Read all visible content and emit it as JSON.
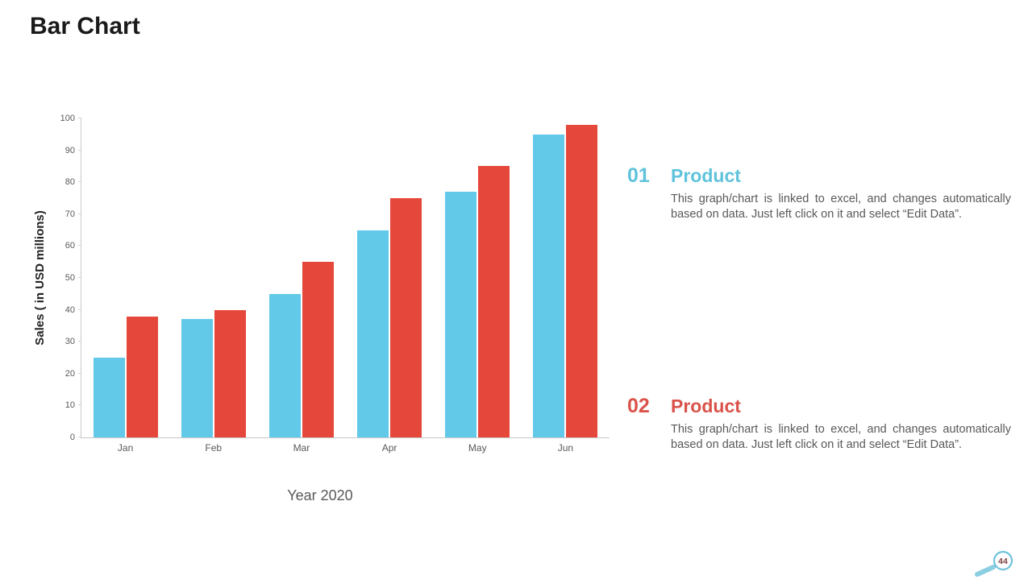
{
  "slide": {
    "title": "Bar Chart",
    "page_number": "44"
  },
  "chart_data": {
    "type": "bar",
    "title": "",
    "categories": [
      "Jan",
      "Feb",
      "Mar",
      "Apr",
      "May",
      "Jun"
    ],
    "series": [
      {
        "name": "Product 01",
        "color": "#62c9e8",
        "values": [
          25,
          37,
          45,
          65,
          77,
          95
        ]
      },
      {
        "name": "Product 02",
        "color": "#e5483b",
        "values": [
          38,
          40,
          55,
          75,
          85,
          98
        ]
      }
    ],
    "xlabel": "Year 2020",
    "ylabel": "Sales ( in USD millions)",
    "ylim": [
      0,
      100
    ],
    "ytick_step": 10,
    "grid": false,
    "legend": "none"
  },
  "panel": {
    "items": [
      {
        "number": "01",
        "heading": "Product",
        "color": "#5fc3db",
        "body": "This graph/chart is linked to excel, and changes automatically based on data. Just left click on it and select “Edit Data”."
      },
      {
        "number": "02",
        "heading": "Product",
        "color": "#d9534a",
        "body": "This graph/chart is linked to excel, and changes automatically based on data. Just left click on it and select “Edit Data”."
      }
    ]
  },
  "badge": {
    "ring_color": "#6fc2dd",
    "handle_color": "#8ccee2",
    "number_color": "#7b4040"
  }
}
